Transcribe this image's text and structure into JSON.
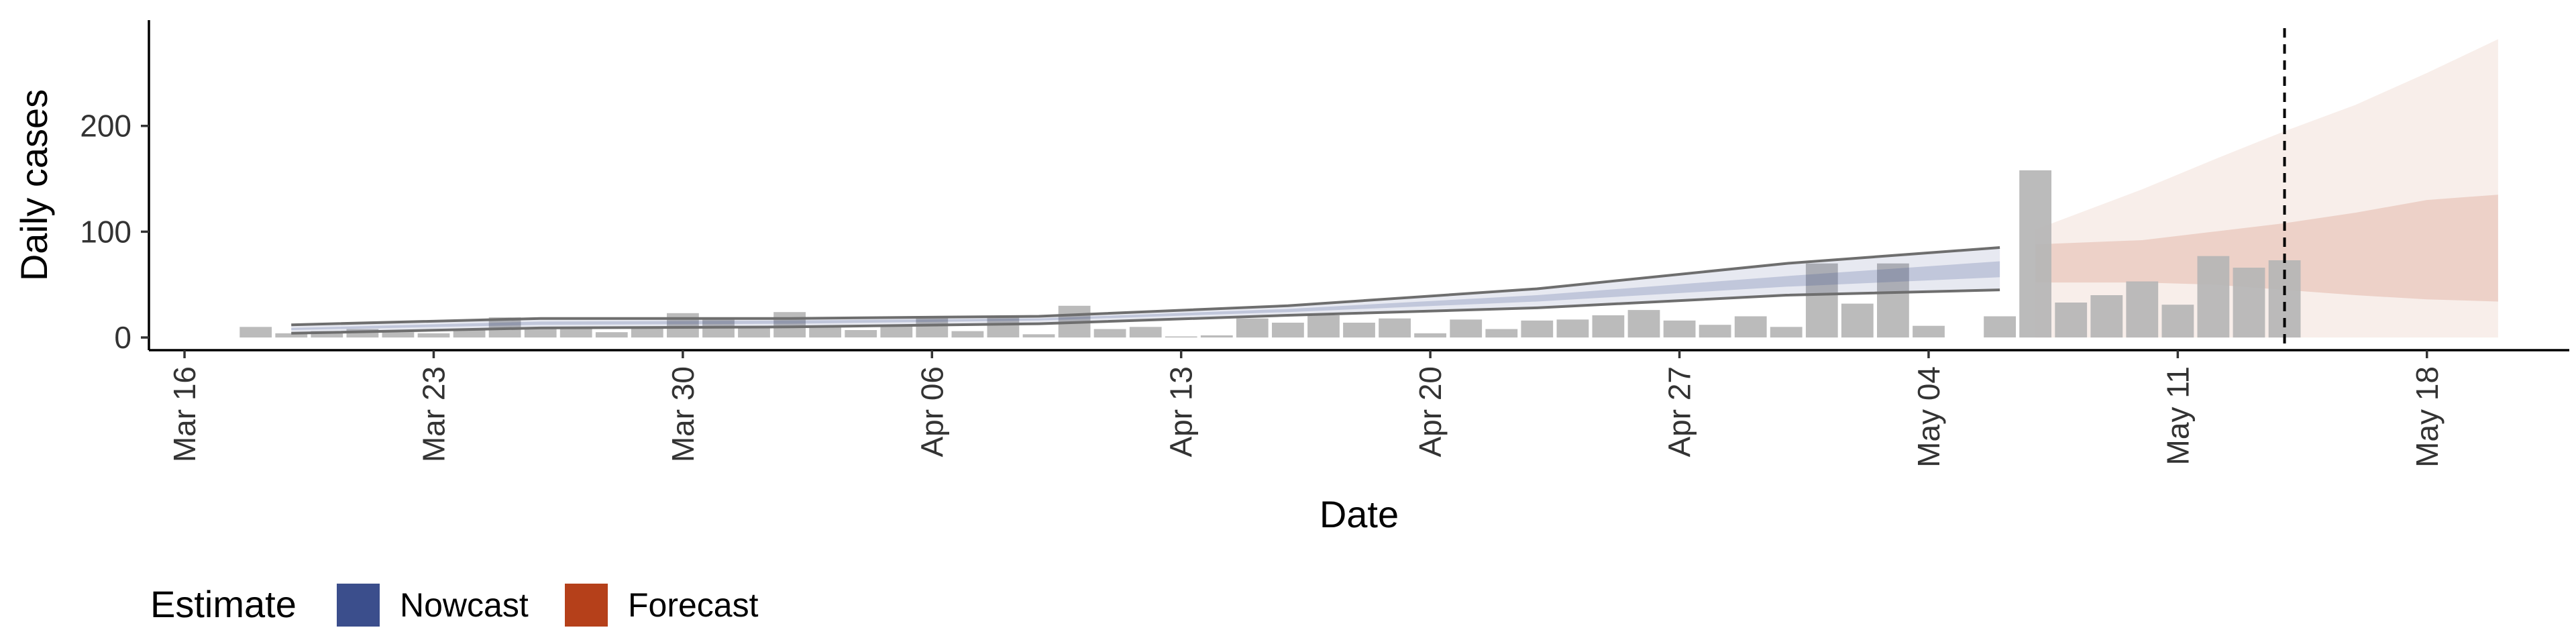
{
  "chart_data": {
    "type": "bar",
    "xlabel": "Date",
    "ylabel": "Daily cases",
    "x_range": [
      "2020-03-15",
      "2020-05-22"
    ],
    "ylim": [
      -12,
      300
    ],
    "x_ticks": [
      {
        "date": "2020-03-16",
        "label": "Mar 16"
      },
      {
        "date": "2020-03-23",
        "label": "Mar 23"
      },
      {
        "date": "2020-03-30",
        "label": "Mar 30"
      },
      {
        "date": "2020-04-06",
        "label": "Apr 06"
      },
      {
        "date": "2020-04-13",
        "label": "Apr 13"
      },
      {
        "date": "2020-04-20",
        "label": "Apr 20"
      },
      {
        "date": "2020-04-27",
        "label": "Apr 27"
      },
      {
        "date": "2020-05-04",
        "label": "May 04"
      },
      {
        "date": "2020-05-11",
        "label": "May 11"
      },
      {
        "date": "2020-05-18",
        "label": "May 18"
      }
    ],
    "y_ticks": [
      0,
      100,
      200
    ],
    "grid": false,
    "forecast_start_date": "2020-05-14",
    "bar_color": "#b5b5b5",
    "bars": {
      "dates": [
        "2020-03-18",
        "2020-03-19",
        "2020-03-20",
        "2020-03-21",
        "2020-03-22",
        "2020-03-23",
        "2020-03-24",
        "2020-03-25",
        "2020-03-26",
        "2020-03-27",
        "2020-03-28",
        "2020-03-29",
        "2020-03-30",
        "2020-03-31",
        "2020-04-01",
        "2020-04-02",
        "2020-04-03",
        "2020-04-04",
        "2020-04-05",
        "2020-04-06",
        "2020-04-07",
        "2020-04-08",
        "2020-04-09",
        "2020-04-10",
        "2020-04-11",
        "2020-04-12",
        "2020-04-13",
        "2020-04-14",
        "2020-04-15",
        "2020-04-16",
        "2020-04-17",
        "2020-04-18",
        "2020-04-19",
        "2020-04-20",
        "2020-04-21",
        "2020-04-22",
        "2020-04-23",
        "2020-04-24",
        "2020-04-25",
        "2020-04-26",
        "2020-04-27",
        "2020-04-28",
        "2020-04-29",
        "2020-04-30",
        "2020-05-01",
        "2020-05-02",
        "2020-05-03",
        "2020-05-04",
        "2020-05-05",
        "2020-05-06",
        "2020-05-07",
        "2020-05-08",
        "2020-05-09",
        "2020-05-10",
        "2020-05-11",
        "2020-05-12",
        "2020-05-13",
        "2020-05-14"
      ],
      "values": [
        10,
        4,
        6,
        8,
        5,
        4,
        8,
        19,
        8,
        8,
        5,
        10,
        23,
        17,
        10,
        24,
        10,
        7,
        12,
        20,
        6,
        20,
        3,
        30,
        8,
        10,
        1,
        2,
        18,
        14,
        21,
        14,
        18,
        4,
        17,
        8,
        16,
        17,
        21,
        26,
        16,
        12,
        20,
        10,
        70,
        32,
        70,
        11,
        0,
        20,
        158,
        33,
        40,
        53,
        31,
        77,
        66,
        73
      ]
    },
    "nowcast": {
      "name": "Nowcast",
      "color": "#3b4e8c",
      "dates": [
        "2020-03-19",
        "2020-03-26",
        "2020-04-02",
        "2020-04-09",
        "2020-04-16",
        "2020-04-23",
        "2020-04-30",
        "2020-05-06"
      ],
      "outer_lower": [
        4,
        9,
        10,
        13,
        21,
        28,
        40,
        45
      ],
      "outer_upper": [
        12,
        18,
        18,
        20,
        30,
        46,
        70,
        85
      ],
      "inner_lower": [
        7,
        12,
        13,
        16,
        24,
        34,
        48,
        57
      ],
      "inner_upper": [
        9,
        15,
        16,
        18,
        27,
        40,
        58,
        72
      ]
    },
    "forecast": {
      "name": "Forecast",
      "color": "#b5401a",
      "dates": [
        "2020-05-07",
        "2020-05-10",
        "2020-05-12",
        "2020-05-14",
        "2020-05-16",
        "2020-05-18",
        "2020-05-20"
      ],
      "outer_lower": [
        0,
        0,
        0,
        0,
        0,
        0,
        0
      ],
      "outer_upper": [
        102,
        140,
        168,
        195,
        220,
        250,
        282
      ],
      "inner_lower": [
        52,
        52,
        50,
        45,
        40,
        36,
        34
      ],
      "inner_upper": [
        88,
        92,
        100,
        108,
        118,
        130,
        135
      ]
    }
  },
  "legend": {
    "title": "Estimate",
    "items": [
      {
        "label": "Nowcast",
        "color": "#3b4e8c"
      },
      {
        "label": "Forecast",
        "color": "#b5401a"
      }
    ]
  }
}
